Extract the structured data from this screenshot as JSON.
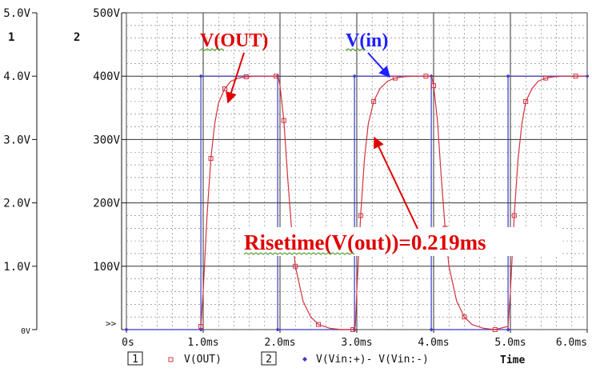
{
  "colors": {
    "vout": "#d4323f",
    "vin": "#3a3ac8",
    "annotation_red": "#e00000",
    "annotation_blue": "#1f1fff",
    "grid": "#555555",
    "text": "#111111"
  },
  "chart_data": {
    "type": "line",
    "axes": {
      "x": {
        "min": 0,
        "max": 6,
        "ticks": [
          0,
          1,
          2,
          3,
          4,
          5,
          6
        ],
        "tick_labels": [
          "0s",
          "1.0ms",
          "2.0ms",
          "3.0ms",
          "4.0ms",
          "5.0ms",
          "6.0ms"
        ],
        "label": "Time"
      },
      "y1": {
        "index_label": "1",
        "min": 0,
        "max": 5,
        "ticks": [
          0,
          1,
          2,
          3,
          4,
          5
        ],
        "tick_labels": [
          "0V",
          "1.0V",
          "2.0V",
          "3.0V",
          "4.0V",
          "5.0V"
        ]
      },
      "y2": {
        "index_label": "2",
        "min": 0,
        "max": 500,
        "ticks": [
          0,
          100,
          200,
          300,
          400,
          500
        ],
        "tick_labels": [
          "",
          "100V",
          "200V",
          "300V",
          "400V",
          "500V"
        ],
        "bottom_marker": ">>"
      }
    },
    "grid": true,
    "series": [
      {
        "name": "V(OUT)",
        "legend_index": "1",
        "axis": "y1",
        "x": [
          0.97,
          1.0,
          1.05,
          1.1,
          1.15,
          1.2,
          1.28,
          1.36,
          1.46,
          1.56,
          1.7,
          1.85,
          1.95,
          1.98,
          2.0,
          2.05,
          2.1,
          2.15,
          2.2,
          2.3,
          2.4,
          2.5,
          2.65,
          2.8,
          2.95,
          2.98,
          3.0,
          3.05,
          3.1,
          3.15,
          3.22,
          3.3,
          3.4,
          3.5,
          3.6,
          3.75,
          3.9,
          3.95,
          3.98,
          4.0,
          4.05,
          4.1,
          4.15,
          4.2,
          4.3,
          4.4,
          4.5,
          4.65,
          4.8,
          4.97,
          5.0,
          5.05,
          5.1,
          5.15,
          5.2,
          5.28,
          5.36,
          5.46,
          5.56,
          5.7,
          5.85,
          5.95,
          6.0
        ],
        "y": [
          0.05,
          0.6,
          1.8,
          2.7,
          3.25,
          3.58,
          3.8,
          3.92,
          3.97,
          3.99,
          4.0,
          4.0,
          4.0,
          3.97,
          3.85,
          3.3,
          2.4,
          1.6,
          1.0,
          0.45,
          0.2,
          0.08,
          0.02,
          0.0,
          0.0,
          0.05,
          0.6,
          1.8,
          2.7,
          3.25,
          3.6,
          3.8,
          3.92,
          3.97,
          3.99,
          4.0,
          4.0,
          4.0,
          3.97,
          3.85,
          3.3,
          2.4,
          1.6,
          1.0,
          0.45,
          0.2,
          0.08,
          0.02,
          0.0,
          0.05,
          0.6,
          1.8,
          2.7,
          3.25,
          3.6,
          3.8,
          3.92,
          3.97,
          3.99,
          4.0,
          4.0,
          4.0,
          4.0
        ]
      },
      {
        "name": "V(Vin:+)- V(Vin:-)",
        "legend_index": "2",
        "axis": "y2",
        "x": [
          0.0,
          0.97,
          0.97,
          1.97,
          1.97,
          2.97,
          2.97,
          3.97,
          3.97,
          4.97,
          4.97,
          6.0
        ],
        "y": [
          0,
          0,
          400,
          400,
          0,
          0,
          400,
          400,
          0,
          0,
          400,
          400
        ]
      }
    ],
    "annotations": [
      {
        "text": "V(OUT)",
        "color": "red"
      },
      {
        "text": "V(in)",
        "color": "blue"
      },
      {
        "text": "Risetime(V(out))=0.219ms",
        "color": "red"
      }
    ]
  }
}
